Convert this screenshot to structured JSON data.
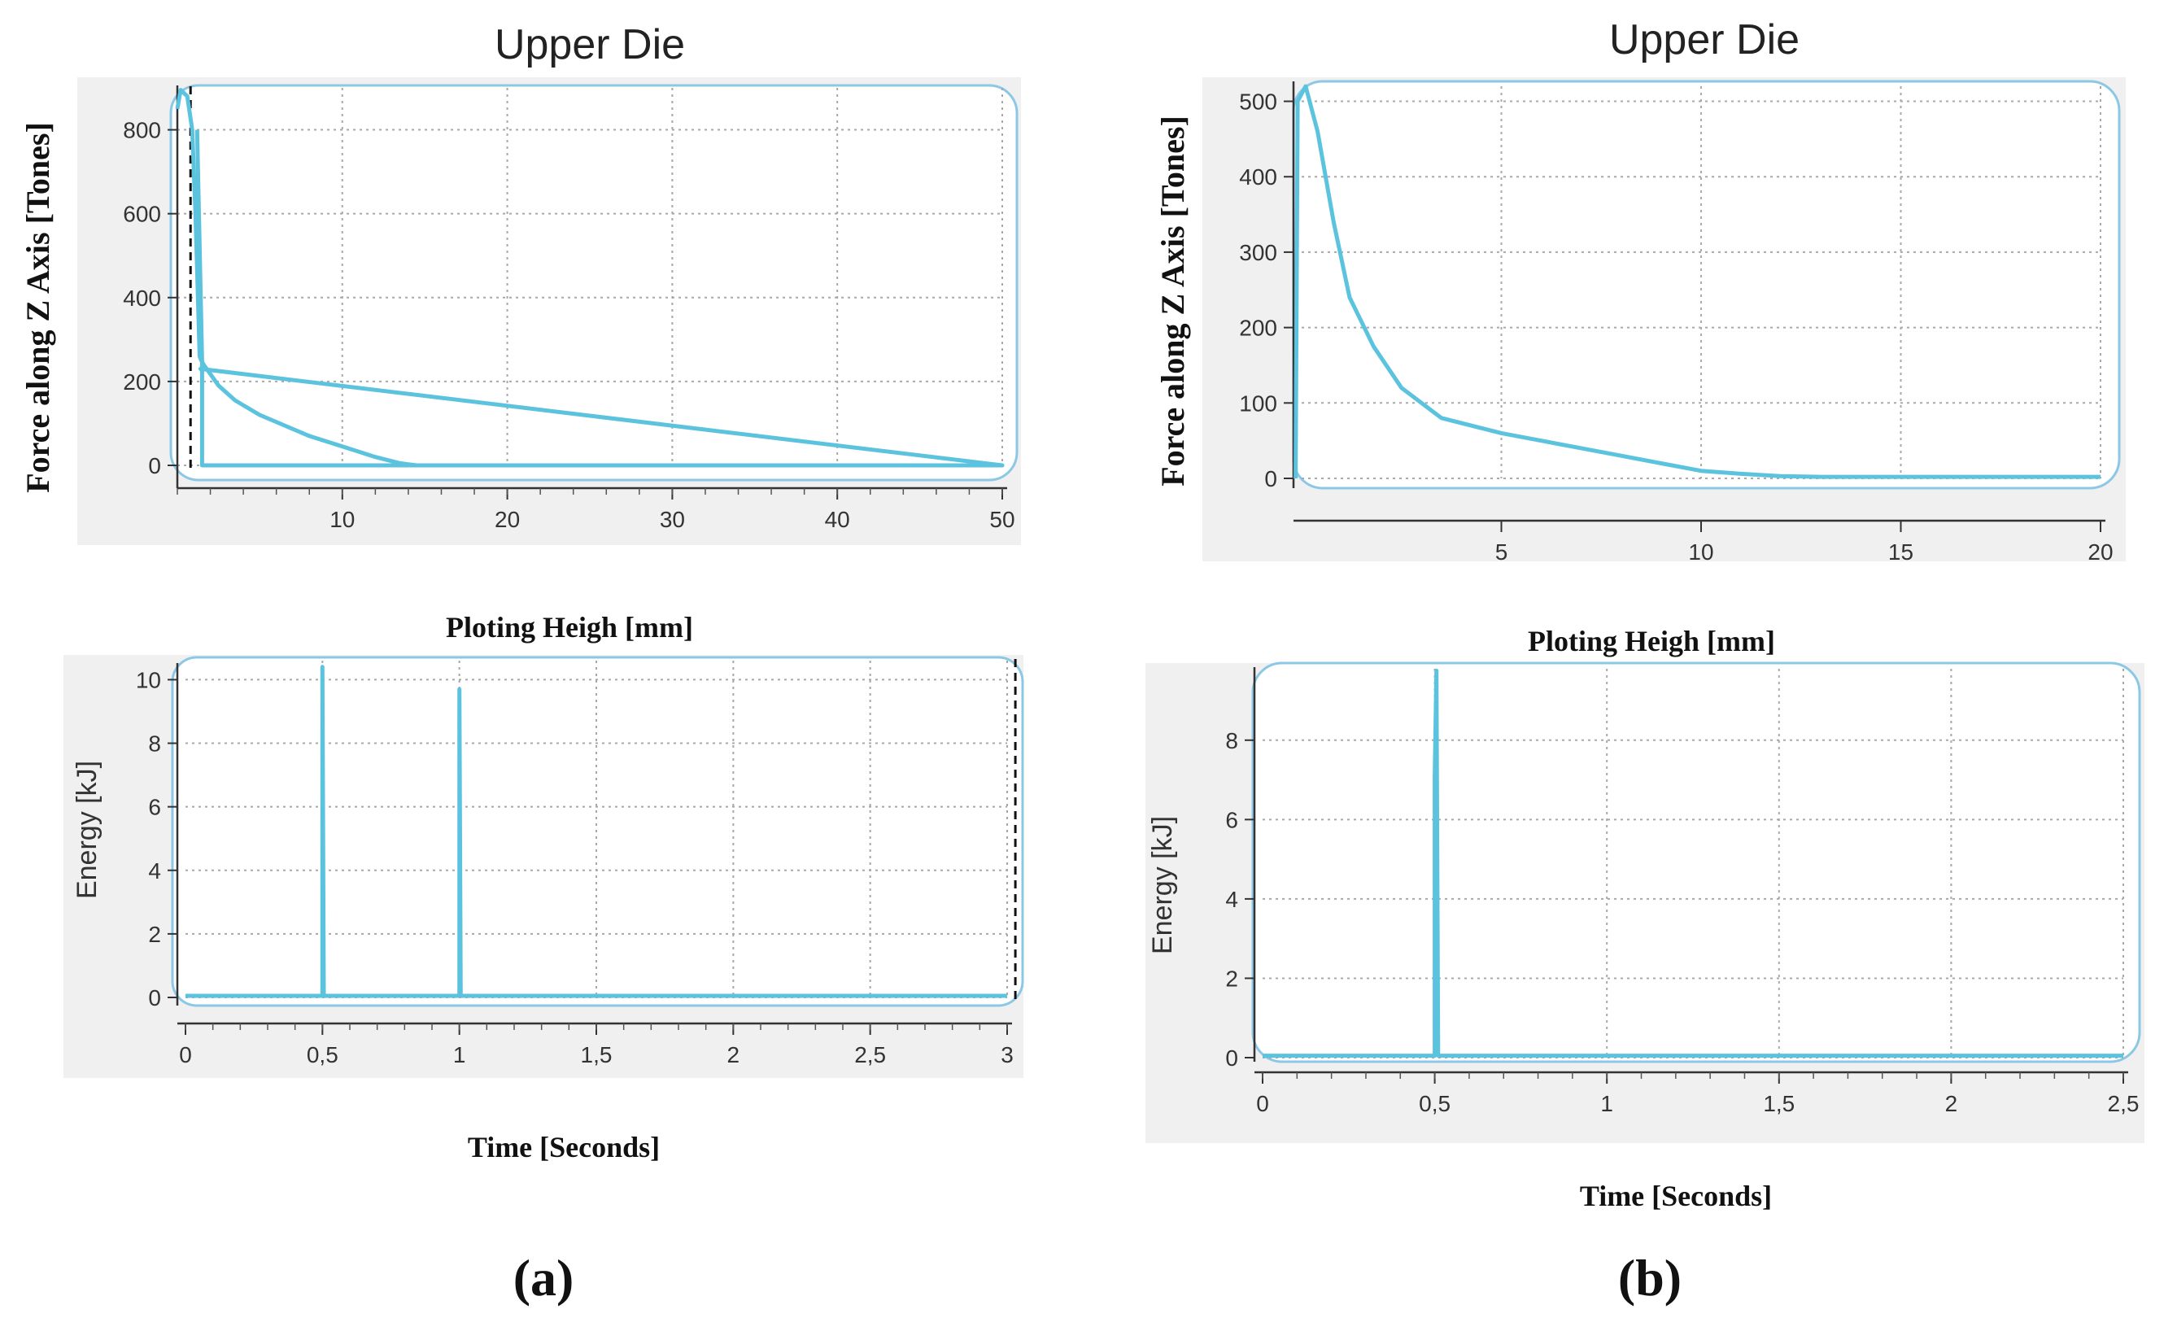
{
  "figure": {
    "panel_labels": [
      "(a)",
      "(b)"
    ]
  },
  "chart_data": [
    {
      "id": "a-force",
      "type": "line",
      "title": "Upper Die",
      "xlabel": "Ploting Heigh [mm]",
      "ylabel": "Force along Z Axis [Tones]",
      "xlim": [
        0,
        50
      ],
      "ylim": [
        0,
        900
      ],
      "xticks": [
        10,
        20,
        30,
        40,
        50
      ],
      "xtick_labels": [
        "10",
        "20",
        "30",
        "40",
        "50"
      ],
      "yticks": [
        0,
        200,
        400,
        600,
        800
      ],
      "ytick_labels": [
        "0",
        "200",
        "400",
        "600",
        "800"
      ],
      "marker_x": 0.8,
      "series": [
        {
          "name": "Force",
          "color": "#5cc3df",
          "points": [
            [
              0,
              850
            ],
            [
              0.2,
              895
            ],
            [
              0.6,
              880
            ],
            [
              0.9,
              800
            ],
            [
              1.1,
              600
            ],
            [
              1.25,
              400
            ],
            [
              1.35,
              260
            ],
            [
              1.45,
              250
            ],
            [
              1.6,
              240
            ],
            [
              2.5,
              190
            ],
            [
              3.5,
              155
            ],
            [
              5,
              120
            ],
            [
              6.5,
              95
            ],
            [
              8,
              70
            ],
            [
              10,
              45
            ],
            [
              12,
              20
            ],
            [
              13.5,
              5
            ],
            [
              14.5,
              0
            ],
            [
              30,
              0
            ],
            [
              50,
              0
            ],
            [
              1.4,
              230
            ],
            [
              50,
              0
            ],
            [
              1.5,
              0
            ],
            [
              1.5,
              250
            ],
            [
              1.2,
              800
            ]
          ]
        }
      ]
    },
    {
      "id": "a-energy",
      "type": "line",
      "title": "",
      "xlabel": "Time [Seconds]",
      "ylabel": "Energy [kJ]",
      "xlim": [
        0,
        3
      ],
      "ylim": [
        0,
        10.6
      ],
      "xticks": [
        0,
        0.5,
        1,
        1.5,
        2,
        2.5,
        3
      ],
      "xtick_labels": [
        "0",
        "0,5",
        "1",
        "1,5",
        "2",
        "2,5",
        "3"
      ],
      "yticks": [
        0,
        2,
        4,
        6,
        8,
        10
      ],
      "ytick_labels": [
        "0",
        "2",
        "4",
        "6",
        "8",
        "10"
      ],
      "marker_x": 3.03,
      "series": [
        {
          "name": "Energy",
          "color": "#5cc3df",
          "points": [
            [
              0,
              0.05
            ],
            [
              0.5,
              0.05
            ],
            [
              0.5,
              10.4
            ],
            [
              0.505,
              0.05
            ],
            [
              1.0,
              0.05
            ],
            [
              1.0,
              9.7
            ],
            [
              1.005,
              0.05
            ],
            [
              3,
              0.05
            ]
          ]
        }
      ]
    },
    {
      "id": "b-force",
      "type": "line",
      "title": "Upper Die",
      "xlabel": "Ploting Heigh [mm]",
      "ylabel": "Force along Z Axis [Tones]",
      "xlim": [
        0,
        20
      ],
      "ylim": [
        0,
        520
      ],
      "xticks": [
        5,
        10,
        15,
        20
      ],
      "xtick_labels": [
        "5",
        "10",
        "15",
        "20"
      ],
      "yticks": [
        0,
        100,
        200,
        300,
        400,
        500
      ],
      "ytick_labels": [
        "0",
        "100",
        "200",
        "300",
        "400",
        "500"
      ],
      "series": [
        {
          "name": "Force",
          "color": "#5cc3df",
          "points": [
            [
              -0.15,
              0
            ],
            [
              -0.1,
              500
            ],
            [
              0.1,
              520
            ],
            [
              0.4,
              460
            ],
            [
              0.8,
              340
            ],
            [
              1.2,
              240
            ],
            [
              1.8,
              175
            ],
            [
              2.5,
              120
            ],
            [
              3.5,
              80
            ],
            [
              5,
              60
            ],
            [
              6,
              50
            ],
            [
              7,
              40
            ],
            [
              8,
              30
            ],
            [
              9,
              20
            ],
            [
              10,
              10
            ],
            [
              11,
              6
            ],
            [
              12,
              3
            ],
            [
              13,
              2
            ],
            [
              20,
              2
            ]
          ]
        }
      ]
    },
    {
      "id": "b-energy",
      "type": "line",
      "title": "",
      "xlabel": "Time [Seconds]",
      "ylabel": "Energy [kJ]",
      "xlim": [
        0,
        2.5
      ],
      "ylim": [
        0,
        9.8
      ],
      "xticks": [
        0,
        0.5,
        1,
        1.5,
        2,
        2.5
      ],
      "xtick_labels": [
        "0",
        "0,5",
        "1",
        "1,5",
        "2",
        "2,5"
      ],
      "yticks": [
        0,
        2,
        4,
        6,
        8
      ],
      "ytick_labels": [
        "0",
        "2",
        "4",
        "6",
        "8"
      ],
      "series": [
        {
          "name": "Energy",
          "color": "#5cc3df",
          "points": [
            [
              0,
              0.05
            ],
            [
              0.5,
              0.05
            ],
            [
              0.5,
              7.1
            ],
            [
              0.505,
              9.75
            ],
            [
              0.51,
              0.05
            ],
            [
              2.5,
              0.05
            ]
          ]
        }
      ]
    }
  ]
}
